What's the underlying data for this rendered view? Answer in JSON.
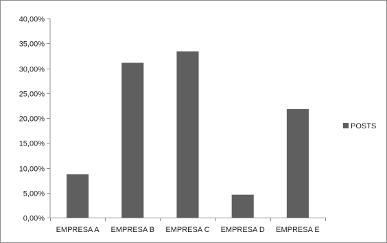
{
  "chart_data": {
    "type": "bar",
    "title": "",
    "xlabel": "",
    "ylabel": "",
    "categories": [
      "EMPRESA A",
      "EMPRESA B",
      "EMPRESA C",
      "EMPRESA D",
      "EMPRESA E"
    ],
    "series": [
      {
        "name": "POSTS",
        "values": [
          8.7,
          31.1,
          33.4,
          4.6,
          21.8
        ],
        "color": "#5f5f5f"
      }
    ],
    "value_unit": "%",
    "ylim": [
      0,
      40
    ],
    "yticks": [
      0,
      5,
      10,
      15,
      20,
      25,
      30,
      35,
      40
    ],
    "ytick_labels": [
      "0,00%",
      "5,00%",
      "10,00%",
      "15,00%",
      "20,00%",
      "25,00%",
      "30,00%",
      "35,00%",
      "40,00%"
    ],
    "grid": false,
    "legend": {
      "position": "right",
      "entries": [
        "POSTS"
      ]
    }
  }
}
